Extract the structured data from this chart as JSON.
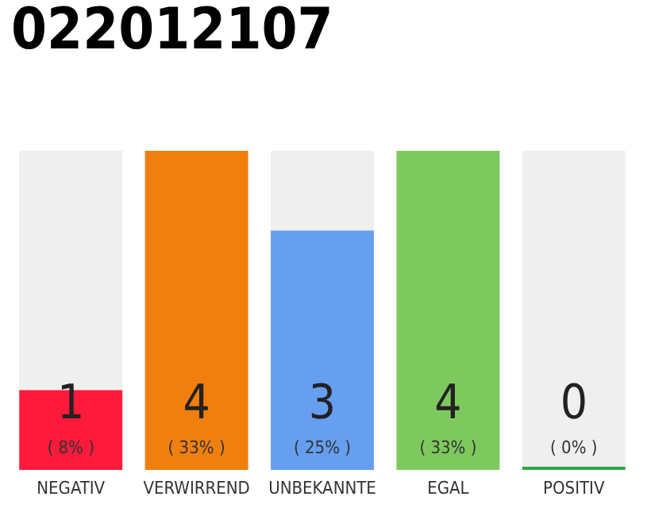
{
  "chart_data": {
    "type": "bar",
    "title": "022012107",
    "categories": [
      "NEGATIV",
      "VERWIRREND",
      "UNBEKANNTE",
      "EGAL",
      "POSITIV"
    ],
    "values": [
      1,
      4,
      3,
      4,
      0
    ],
    "colors": [
      "#ff1a3c",
      "#f07f0e",
      "#669ef0",
      "#7dc95e",
      "#2ea84a"
    ],
    "value_labels": [
      "1\n( 8% )",
      "4\n( 33% )",
      "3\n( 25% )",
      "4\n( 33% )",
      "0\n( 0% )"
    ]
  }
}
